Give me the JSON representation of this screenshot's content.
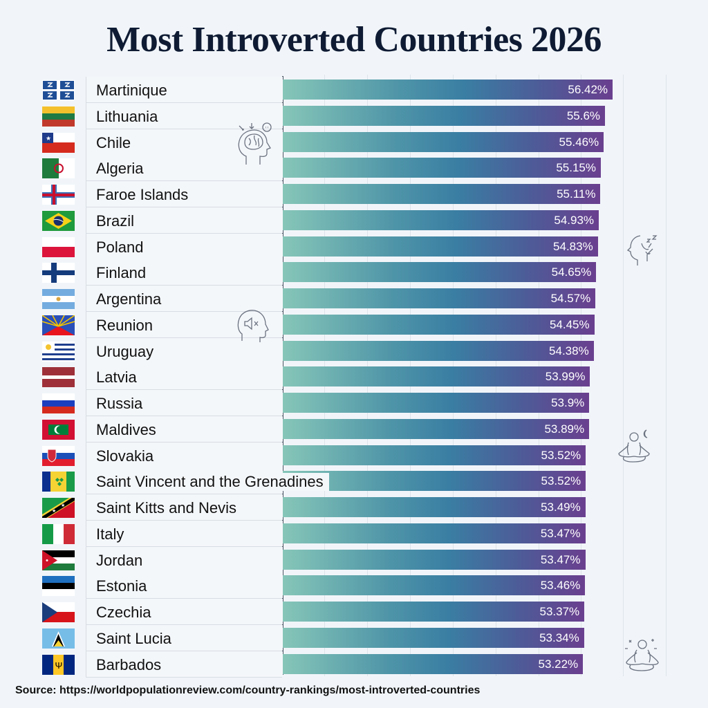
{
  "title": "Most Introverted Countries 2026",
  "source": "Source: https://worldpopulationreview.com/country-rankings/most-introverted-countries",
  "colors": {
    "bar_start": "#86c6b8",
    "bar_mid": "#3a7ea3",
    "bar_end": "#6a3f8f",
    "title": "#0f1b33"
  },
  "icons": [
    "brain-head-icon",
    "muted-head-icon",
    "sleeping-head-icon",
    "meditation-moon-icon",
    "meditation-calm-icon"
  ],
  "chart_data": {
    "type": "bar",
    "orientation": "horizontal",
    "title": "Most Introverted Countries 2026",
    "xlabel": "",
    "ylabel": "",
    "value_suffix": "%",
    "grid": true,
    "categories": [
      "Martinique",
      "Lithuania",
      "Chile",
      "Algeria",
      "Faroe Islands",
      "Brazil",
      "Poland",
      "Finland",
      "Argentina",
      "Reunion",
      "Uruguay",
      "Latvia",
      "Russia",
      "Maldives",
      "Slovakia",
      "Saint Vincent and the Grenadines",
      "Saint Kitts and Nevis",
      "Italy",
      "Jordan",
      "Estonia",
      "Czechia",
      "Saint Lucia",
      "Barbados"
    ],
    "values": [
      56.42,
      55.6,
      55.46,
      55.15,
      55.11,
      54.93,
      54.83,
      54.65,
      54.57,
      54.45,
      54.38,
      53.99,
      53.9,
      53.89,
      53.52,
      53.52,
      53.49,
      53.47,
      53.47,
      53.46,
      53.37,
      53.34,
      53.22
    ],
    "labels": [
      "56.42%",
      "55.6%",
      "55.46%",
      "55.15%",
      "55.11%",
      "54.93%",
      "54.83%",
      "54.65%",
      "54.57%",
      "54.45%",
      "54.38%",
      "53.99%",
      "53.9%",
      "53.89%",
      "53.52%",
      "53.52%",
      "53.49%",
      "53.47%",
      "53.47%",
      "53.46%",
      "53.37%",
      "53.34%",
      "53.22%"
    ],
    "flags": [
      "martinique",
      "lithuania",
      "chile",
      "algeria",
      "faroe",
      "brazil",
      "poland",
      "finland",
      "argentina",
      "reunion",
      "uruguay",
      "latvia",
      "russia",
      "maldives",
      "slovakia",
      "svg",
      "kitts",
      "italy",
      "jordan",
      "estonia",
      "czechia",
      "lucia",
      "barbados"
    ]
  }
}
